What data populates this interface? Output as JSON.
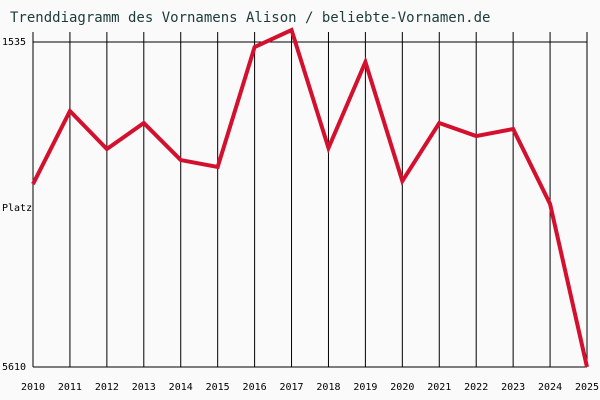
{
  "chart_data": {
    "type": "line",
    "title": "Trenddiagramm des Vornamens Alison / beliebte-Vornamen.de",
    "ylabel": "Platz",
    "categories": [
      "2010",
      "2011",
      "2012",
      "2013",
      "2014",
      "2015",
      "2016",
      "2017",
      "2018",
      "2019",
      "2020",
      "2021",
      "2022",
      "2023",
      "2024",
      "2025"
    ],
    "series": [
      {
        "name": "Alison",
        "color": "#d3112f",
        "values": [
          3316,
          2400,
          2877,
          2551,
          3015,
          3102,
          1598,
          1385,
          2864,
          1786,
          3278,
          2551,
          2714,
          2626,
          3566,
          5610
        ]
      }
    ],
    "ylim": [
      1535,
      5610
    ],
    "yticks": [
      1535,
      5610
    ],
    "reversed": true,
    "grid": true
  }
}
